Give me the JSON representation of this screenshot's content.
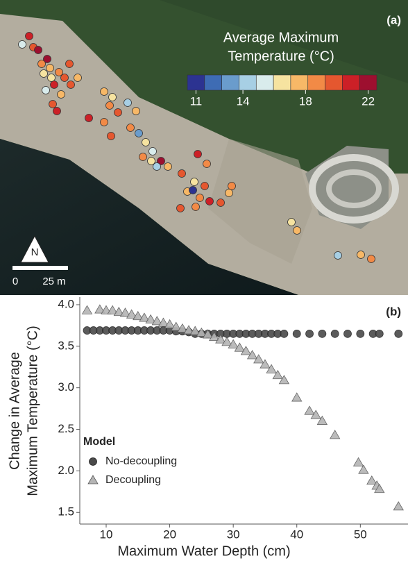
{
  "map_panel": {
    "label": "(a)",
    "colorbar": {
      "title": [
        "Average Maximum",
        "Temperature (°C)"
      ],
      "range": [
        11,
        22
      ],
      "ticks": [
        11,
        14,
        18,
        22
      ],
      "colors": [
        "#2c3391",
        "#3e6cb4",
        "#6a9ccc",
        "#a7cfe4",
        "#d9ecec",
        "#f6e3a0",
        "#f7b867",
        "#f28a46",
        "#e5572f",
        "#cc2027",
        "#9d0f2f"
      ]
    },
    "north": "N",
    "scale": [
      "0",
      "25 m"
    ]
  },
  "chart_data": {
    "type": "scatter",
    "label": "(b)",
    "xlabel": "Maximum Water Depth (cm)",
    "ylabel": [
      "Change in Average",
      "Maximum Temperature (°C)"
    ],
    "xlim": [
      5.85,
      57.5
    ],
    "xticks": [
      10,
      20,
      30,
      40,
      50
    ],
    "ylim": [
      1.36,
      4.075
    ],
    "yticks": [
      1.5,
      {
        "value": 2,
        "label": "2.0"
      },
      2.5,
      {
        "value": 3,
        "label": "3.0"
      },
      3.5,
      {
        "value": 4,
        "label": "4.0"
      }
    ],
    "legend_title": "Model",
    "legend": "lower left",
    "series": [
      {
        "name": "No-decoupling",
        "color": "#4a4a4a",
        "marker": "circle",
        "x": [
          7,
          8,
          9,
          10,
          11,
          12,
          13,
          14,
          15,
          16,
          17,
          18,
          19,
          20,
          21,
          22,
          23,
          24,
          25,
          26,
          27,
          28,
          29,
          30,
          31,
          32,
          33,
          34,
          35,
          36,
          37,
          38,
          40,
          42,
          44,
          46,
          48,
          50,
          52,
          53,
          56
        ],
        "values": [
          3.69,
          3.69,
          3.69,
          3.69,
          3.69,
          3.69,
          3.69,
          3.69,
          3.69,
          3.69,
          3.69,
          3.69,
          3.69,
          3.69,
          3.68,
          3.68,
          3.67,
          3.65,
          3.65,
          3.65,
          3.65,
          3.65,
          3.65,
          3.65,
          3.65,
          3.65,
          3.65,
          3.65,
          3.65,
          3.65,
          3.65,
          3.65,
          3.65,
          3.65,
          3.65,
          3.65,
          3.65,
          3.65,
          3.65,
          3.65,
          3.65
        ]
      },
      {
        "name": "Decoupling",
        "color": "#b4b4b4",
        "marker": "triangle",
        "x": [
          7,
          9,
          10,
          11,
          12,
          13,
          14,
          15,
          16,
          17,
          18,
          19,
          20,
          21,
          22,
          23,
          24,
          25,
          26,
          27,
          28,
          29,
          30,
          31,
          32,
          33,
          34,
          35,
          36,
          37,
          38,
          40,
          42,
          43,
          44,
          46,
          49.7,
          50.5,
          51.8,
          52.6,
          53,
          56
        ],
        "values": [
          3.93,
          3.94,
          3.93,
          3.93,
          3.91,
          3.9,
          3.88,
          3.86,
          3.84,
          3.82,
          3.8,
          3.78,
          3.76,
          3.73,
          3.71,
          3.69,
          3.68,
          3.66,
          3.64,
          3.61,
          3.58,
          3.55,
          3.52,
          3.48,
          3.44,
          3.39,
          3.34,
          3.28,
          3.22,
          3.15,
          3.09,
          2.88,
          2.72,
          2.67,
          2.6,
          2.43,
          2.1,
          2.01,
          1.88,
          1.82,
          1.78,
          1.57
        ]
      }
    ]
  }
}
